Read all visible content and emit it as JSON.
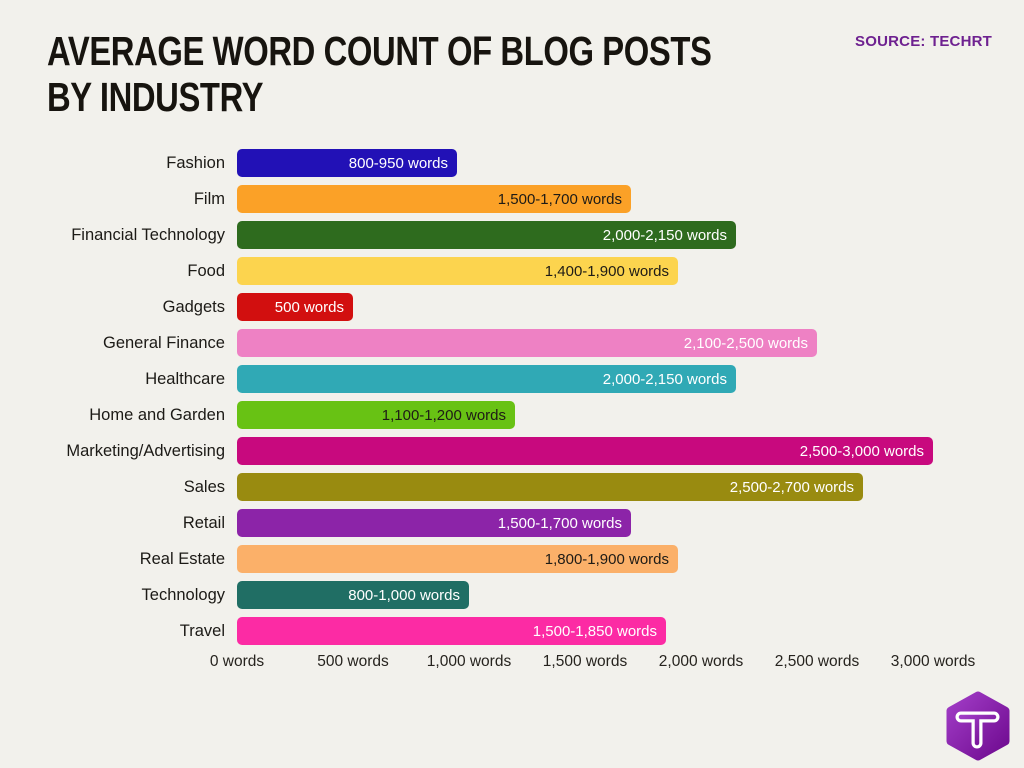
{
  "page": {
    "background": "#f2f1ec"
  },
  "header": {
    "title": "AVERAGE WORD COUNT OF BLOG POSTS BY INDUSTRY",
    "source_label": "SOURCE: TECHRT",
    "source_color": "#6e2190"
  },
  "chart_data": {
    "type": "bar",
    "orientation": "horizontal",
    "title": "AVERAGE WORD COUNT OF BLOG POSTS BY INDUSTRY",
    "value_unit": "words",
    "xlim": [
      0,
      3000
    ],
    "grid": false,
    "legend": false,
    "x_tick_values": [
      0,
      500,
      1000,
      1500,
      2000,
      2500,
      3000
    ],
    "x_tick_labels": [
      "0 words",
      "500 words",
      "1,000 words",
      "1,500 words",
      "2,000 words",
      "2,500 words",
      "3,000 words"
    ],
    "bars": [
      {
        "category": "Fashion",
        "range_label": "800-950 words",
        "range": [
          800,
          950
        ],
        "bar_value": 950,
        "color": "#2211b6",
        "text_color": "#ffffff"
      },
      {
        "category": "Film",
        "range_label": "1,500-1,700 words",
        "range": [
          1500,
          1700
        ],
        "bar_value": 1700,
        "color": "#fba127",
        "text_color": "#1e1b16"
      },
      {
        "category": "Financial Technology",
        "range_label": "2,000-2,150 words",
        "range": [
          2000,
          2150
        ],
        "bar_value": 2150,
        "color": "#2e6b1e",
        "text_color": "#ffffff"
      },
      {
        "category": "Food",
        "range_label": "1,400-1,900 words",
        "range": [
          1400,
          1900
        ],
        "bar_value": 1900,
        "color": "#fcd44e",
        "text_color": "#1e1b16"
      },
      {
        "category": "Gadgets",
        "range_label": "500 words",
        "range": [
          500,
          500
        ],
        "bar_value": 500,
        "color": "#d20f0f",
        "text_color": "#ffffff"
      },
      {
        "category": "General Finance",
        "range_label": "2,100-2,500 words",
        "range": [
          2100,
          2500
        ],
        "bar_value": 2500,
        "color": "#ee81c4",
        "text_color": "#ffffff"
      },
      {
        "category": "Healthcare",
        "range_label": "2,000-2,150 words",
        "range": [
          2000,
          2150
        ],
        "bar_value": 2150,
        "color": "#30a9b5",
        "text_color": "#ffffff"
      },
      {
        "category": "Home and Garden",
        "range_label": "1,100-1,200 words",
        "range": [
          1100,
          1200
        ],
        "bar_value": 1200,
        "color": "#68c214",
        "text_color": "#1e1b16"
      },
      {
        "category": "Marketing/Advertising",
        "range_label": "2,500-3,000 words",
        "range": [
          2500,
          3000
        ],
        "bar_value": 3000,
        "color": "#c8097e",
        "text_color": "#ffffff"
      },
      {
        "category": "Sales",
        "range_label": "2,500-2,700 words",
        "range": [
          2500,
          2700
        ],
        "bar_value": 2700,
        "color": "#998b10",
        "text_color": "#ffffff"
      },
      {
        "category": "Retail",
        "range_label": "1,500-1,700 words",
        "range": [
          1500,
          1700
        ],
        "bar_value": 1700,
        "color": "#8c24a8",
        "text_color": "#ffffff"
      },
      {
        "category": "Real Estate",
        "range_label": "1,800-1,900 words",
        "range": [
          1800,
          1900
        ],
        "bar_value": 1900,
        "color": "#fbb069",
        "text_color": "#1e1b16"
      },
      {
        "category": "Technology",
        "range_label": "800-1,000 words",
        "range": [
          800,
          1000
        ],
        "bar_value": 1000,
        "color": "#206e64",
        "text_color": "#ffffff"
      },
      {
        "category": "Travel",
        "range_label": "1,500-1,850 words",
        "range": [
          1500,
          1850
        ],
        "bar_value": 1850,
        "color": "#fc2ba4",
        "text_color": "#ffffff"
      }
    ]
  },
  "logo": {
    "letter": "T",
    "gradient_top": "#a13cc6",
    "gradient_bottom": "#6f0b90"
  }
}
